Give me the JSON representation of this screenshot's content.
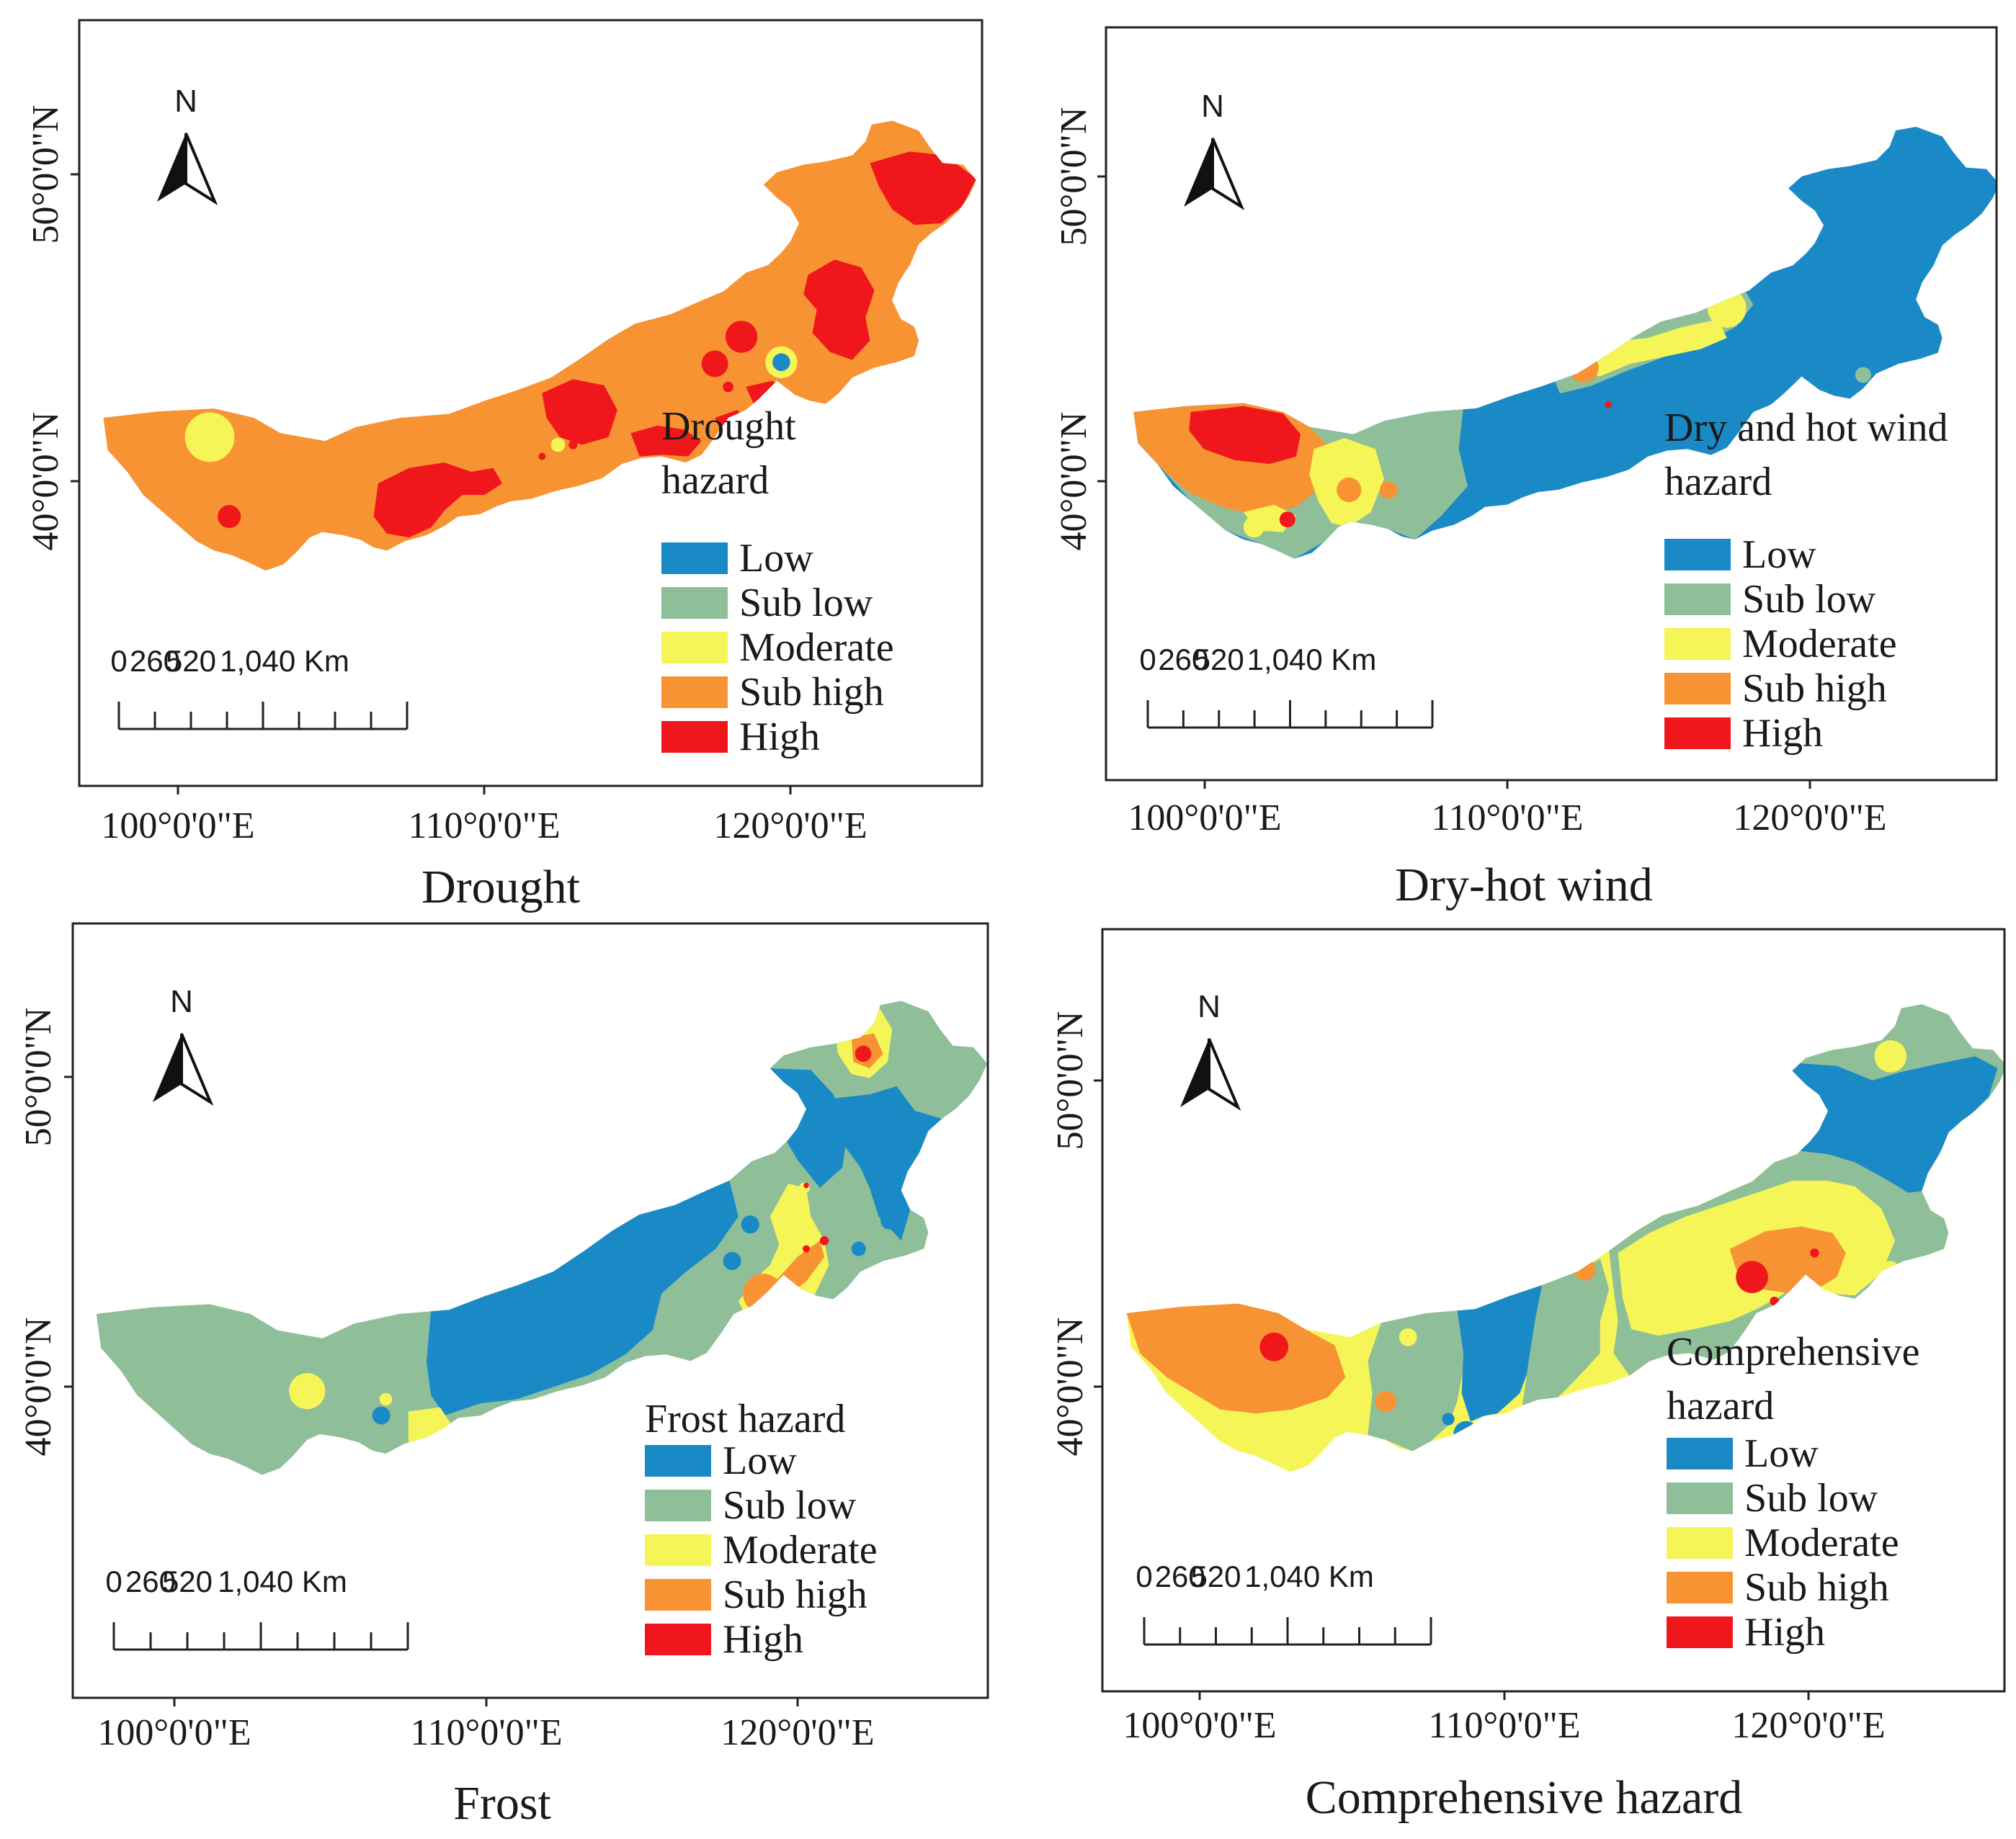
{
  "colors": {
    "Low": "#1a8ac7",
    "Sub low": "#8fbf98",
    "Moderate": "#f5f558",
    "Sub high": "#f79332",
    "High": "#f0171c",
    "frame": "#222222"
  },
  "common": {
    "north": "N",
    "scale_ticks": [
      "0",
      "260",
      "520",
      "1,040 Km"
    ],
    "lon_labels": [
      "100°0'0\"E",
      "110°0'0\"E",
      "120°0'0\"E"
    ],
    "lat_labels": [
      "40°0'0\"N",
      "50°0'0\"N"
    ]
  },
  "panels": [
    {
      "caption": "Drought",
      "legend_title": [
        "Drought",
        "hazard"
      ],
      "legend": [
        "Low",
        "Sub low",
        "Moderate",
        "Sub high",
        "High"
      ]
    },
    {
      "caption": "Dry-hot wind",
      "legend_title": [
        "Dry and hot wind",
        "hazard"
      ],
      "legend": [
        "Low",
        "Sub low",
        "Moderate",
        "Sub high",
        "High"
      ]
    },
    {
      "caption": "Frost",
      "legend_title": [
        "Frost hazard"
      ],
      "legend": [
        "Low",
        "Sub low",
        "Moderate",
        "Sub high",
        "High"
      ]
    },
    {
      "caption": "Comprehensive hazard",
      "legend_title": [
        "Comprehensive",
        "hazard"
      ],
      "legend": [
        "Low",
        "Sub low",
        "Moderate",
        "Sub high",
        "High"
      ]
    }
  ]
}
